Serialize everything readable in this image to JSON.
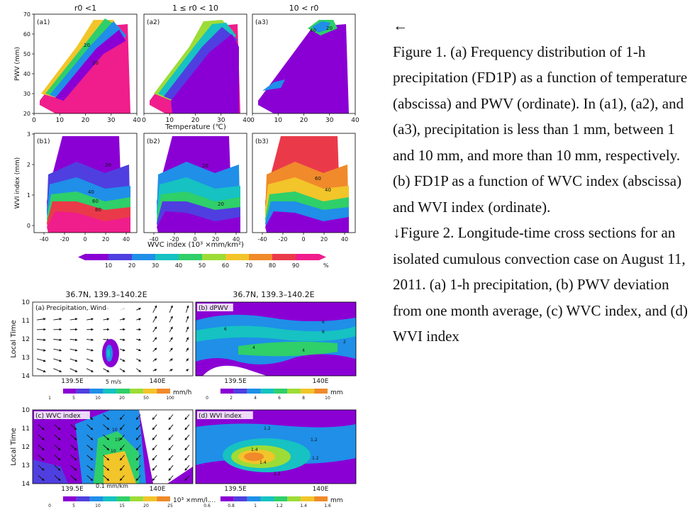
{
  "figure1": {
    "col_titles": [
      "r0 <1",
      "1 ≤ r0 < 10",
      "10 < r0"
    ],
    "panels_a": [
      "(a1)",
      "(a2)",
      "(a3)"
    ],
    "panels_b": [
      "(b1)",
      "(b2)",
      "(b3)"
    ],
    "ylabel_a": "PWV (mm)",
    "ylabel_b": "WVI index  (mm)",
    "xlabel_a": "Temperature (℃)",
    "xlabel_b": "WVC index  (10³ ×mm/km²)",
    "a_xticks": [
      "0",
      "10",
      "20",
      "30",
      "40"
    ],
    "a_yticks": [
      "20",
      "30",
      "40",
      "50",
      "60",
      "70"
    ],
    "b_xticks": [
      "-40",
      "-20",
      "0",
      "20",
      "40"
    ],
    "b_yticks": [
      "0",
      "1",
      "2",
      "3"
    ],
    "contour_labels": {
      "a1": [
        "20",
        "20"
      ],
      "a3": [
        "40",
        "20"
      ],
      "b1": [
        "20",
        "40",
        "60",
        "80"
      ],
      "b2": [
        "20",
        "20"
      ],
      "b3": [
        "60",
        "40"
      ]
    },
    "colorbar_ticks": [
      "10",
      "20",
      "30",
      "40",
      "50",
      "60",
      "70",
      "80",
      "90"
    ],
    "colorbar_unit": "%",
    "colors": [
      "#8a00d4",
      "#4f3fe0",
      "#1f8fe8",
      "#16c2c2",
      "#2fcf6a",
      "#9ddc37",
      "#f2c52a",
      "#f08a2a",
      "#ea3a4a",
      "#f01d8c"
    ]
  },
  "figure2": {
    "titles": [
      "36.7N, 139.3–140.2E",
      "36.7N, 139.3–140.2E"
    ],
    "panels": [
      "(a) Precipitation, Wind",
      "(b) dPWV",
      "(c) WVC index",
      "(d) WVI index"
    ],
    "ylabel": "Local Time",
    "yticks": [
      "10",
      "11",
      "12",
      "13",
      "14"
    ],
    "xticks": [
      "139.5E",
      "140E"
    ],
    "ref_vectors": [
      "5 m/s",
      "0.1 mm/km"
    ],
    "cbar_a": {
      "ticks": [
        "1",
        "5",
        "10",
        "20",
        "50",
        "100"
      ],
      "unit": "mm/h"
    },
    "cbar_b": {
      "ticks": [
        "0",
        "2",
        "4",
        "6",
        "8",
        "10"
      ],
      "unit": "mm"
    },
    "cbar_c": {
      "ticks": [
        "0",
        "5",
        "10",
        "15",
        "20",
        "25"
      ],
      "unit": "10³ ×mm/km²"
    },
    "cbar_d": {
      "ticks": [
        "0.6",
        "0.8",
        "1",
        "1.2",
        "1.4",
        "1.6"
      ],
      "unit": "mm"
    },
    "contour_labels_b": [
      "6",
      "6",
      "6",
      "4",
      "4",
      "2"
    ],
    "contour_labels_c": [
      "10",
      "15",
      "10"
    ],
    "contour_labels_d": [
      "1.2",
      "1.2",
      "1.4",
      "1.4",
      "1.2",
      "1.2"
    ]
  },
  "caption": {
    "arrow": "←",
    "fig1": "Figure 1. (a) Frequency distribution of 1-h precipitation (FD1P) as a function of temperature (abscissa) and PWV (ordinate). In (a1), (a2), and (a3), precipitation is less than 1 mm, between 1 and 10 mm, and more than 10 mm, respectively. (b) FD1P as a function of WVC index (abscissa) and WVI index (ordinate).",
    "fig2": "↓Figure 2. Longitude-time cross sections for an isolated cumulous convection case on August 11, 2011. (a) 1-h precipitation, (b) PWV deviation from one month average, (c) WVC index, and (d) WVI index"
  }
}
